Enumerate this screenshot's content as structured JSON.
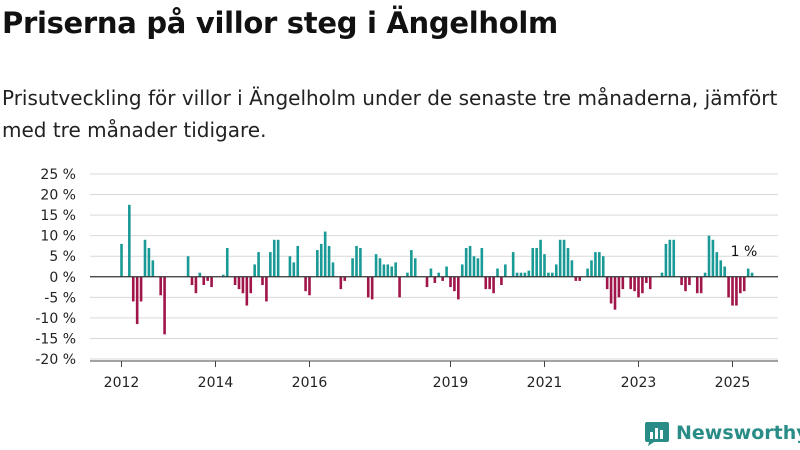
{
  "title": "Priserna på villor steg i Ängelholm",
  "subtitle": "Prisutveckling för villor i Ängelholm under de senaste tre månaderna, jämfört med tre månader tidigare.",
  "brand": {
    "name": "Newsworthy"
  },
  "colors": {
    "positive": "#1a9a96",
    "negative": "#a0154a",
    "grid": "#d9d9d9",
    "axis": "#333333",
    "brand": "#2a8c87"
  },
  "chart_data": {
    "type": "bar",
    "ylim": [
      -20,
      25
    ],
    "yticks": [
      25,
      20,
      15,
      10,
      5,
      0,
      -5,
      -10,
      -15,
      -20
    ],
    "ytick_labels": [
      "25 %",
      "20 %",
      "15 %",
      "10 %",
      "5 %",
      "0 %",
      "-5 %",
      "-10 %",
      "-15 %",
      "-20 %"
    ],
    "xticks": [
      2012,
      2014,
      2016,
      2019,
      2021,
      2023,
      2025
    ],
    "xtick_labels": [
      "2012",
      "2014",
      "2016",
      "2019",
      "2021",
      "2023",
      "2025"
    ],
    "x_start": "2012-01",
    "annotation": {
      "text": "1 %"
    },
    "values": [
      8,
      0,
      17.5,
      -6,
      -11.5,
      -6,
      9,
      7,
      4,
      0,
      -4.5,
      -14,
      0,
      0,
      0,
      0,
      0,
      5,
      -2,
      -4,
      1,
      -2,
      -1,
      -2.5,
      0,
      0,
      0.5,
      7,
      0,
      -2,
      -3,
      -4,
      -7,
      -4,
      3,
      6,
      -2,
      -6,
      6,
      9,
      9,
      0,
      0,
      5,
      3.5,
      7.5,
      0,
      -3.5,
      -4.5,
      0,
      6.5,
      8,
      11,
      7.5,
      3.5,
      0,
      -3,
      -1,
      0,
      4.5,
      7.5,
      7,
      0,
      -5,
      -5.5,
      5.5,
      4.5,
      3,
      3,
      2.5,
      3.5,
      -5,
      0,
      1,
      6.5,
      4.5,
      0,
      0,
      -2.5,
      2,
      -1.5,
      1,
      -1,
      2.5,
      -2.5,
      -3.5,
      -5.5,
      3,
      7,
      7.5,
      5,
      4.5,
      7,
      -3,
      -3,
      -4,
      2,
      -2,
      3,
      0,
      6,
      1,
      1,
      1,
      1.5,
      7,
      7,
      9,
      5.5,
      1,
      1,
      3,
      9,
      9,
      7,
      4,
      -1,
      -1,
      0,
      2,
      4,
      6,
      6,
      5,
      -3,
      -6.5,
      -8,
      -5,
      -3,
      0,
      -3,
      -3.5,
      -5,
      -4,
      -1.5,
      -3,
      0,
      0,
      1,
      8,
      9,
      9,
      0,
      -2,
      -3.5,
      -2,
      0,
      -4,
      -4,
      1,
      10,
      9,
      6,
      4,
      2.5,
      -5,
      -7,
      -7,
      -4,
      -3.5,
      2,
      1
    ]
  }
}
